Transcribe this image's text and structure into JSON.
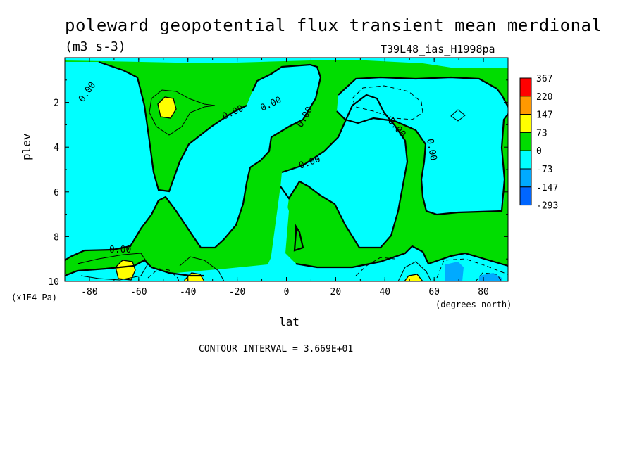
{
  "chart_data": {
    "type": "contour",
    "title": "poleward geopotential flux transient mean merdional",
    "units": "(m3 s-3)",
    "run_label": "T39L48_ias_H1998pa",
    "xlabel": "lat",
    "x_units": "(degrees_north)",
    "ylabel": "plev",
    "y_units": "(x1E4 Pa)",
    "xlim": [
      -90,
      90
    ],
    "ylim": [
      10,
      0
    ],
    "x_ticks": [
      -80,
      -60,
      -40,
      -20,
      0,
      20,
      40,
      60,
      80
    ],
    "x_tick_labels": [
      "-80",
      "-60",
      "-40",
      "-20",
      "0",
      "20",
      "40",
      "60",
      "80"
    ],
    "y_ticks": [
      2,
      4,
      6,
      8,
      10
    ],
    "y_tick_labels": [
      "2",
      "4",
      "6",
      "8",
      "10"
    ],
    "contour_interval_text": "CONTOUR INTERVAL = 3.669E+01",
    "contour_labels": [
      "0.00",
      "0.00",
      "0.00",
      "0.00",
      "0.00",
      "0.00",
      "0.00",
      "0.00"
    ],
    "legend": {
      "levels": [
        "367",
        "220",
        "147",
        "73",
        "0",
        "-73",
        "-147",
        "-293"
      ],
      "colors": [
        "#ff0000",
        "#ff9900",
        "#ffff00",
        "#00dd00",
        "#00ffff",
        "#00aaff",
        "#0066ff"
      ]
    },
    "colors": {
      "positive": "#00dd00",
      "negative": "#00ffff",
      "high_positive": "#ffff00",
      "low_negative": "#00aaff"
    }
  }
}
